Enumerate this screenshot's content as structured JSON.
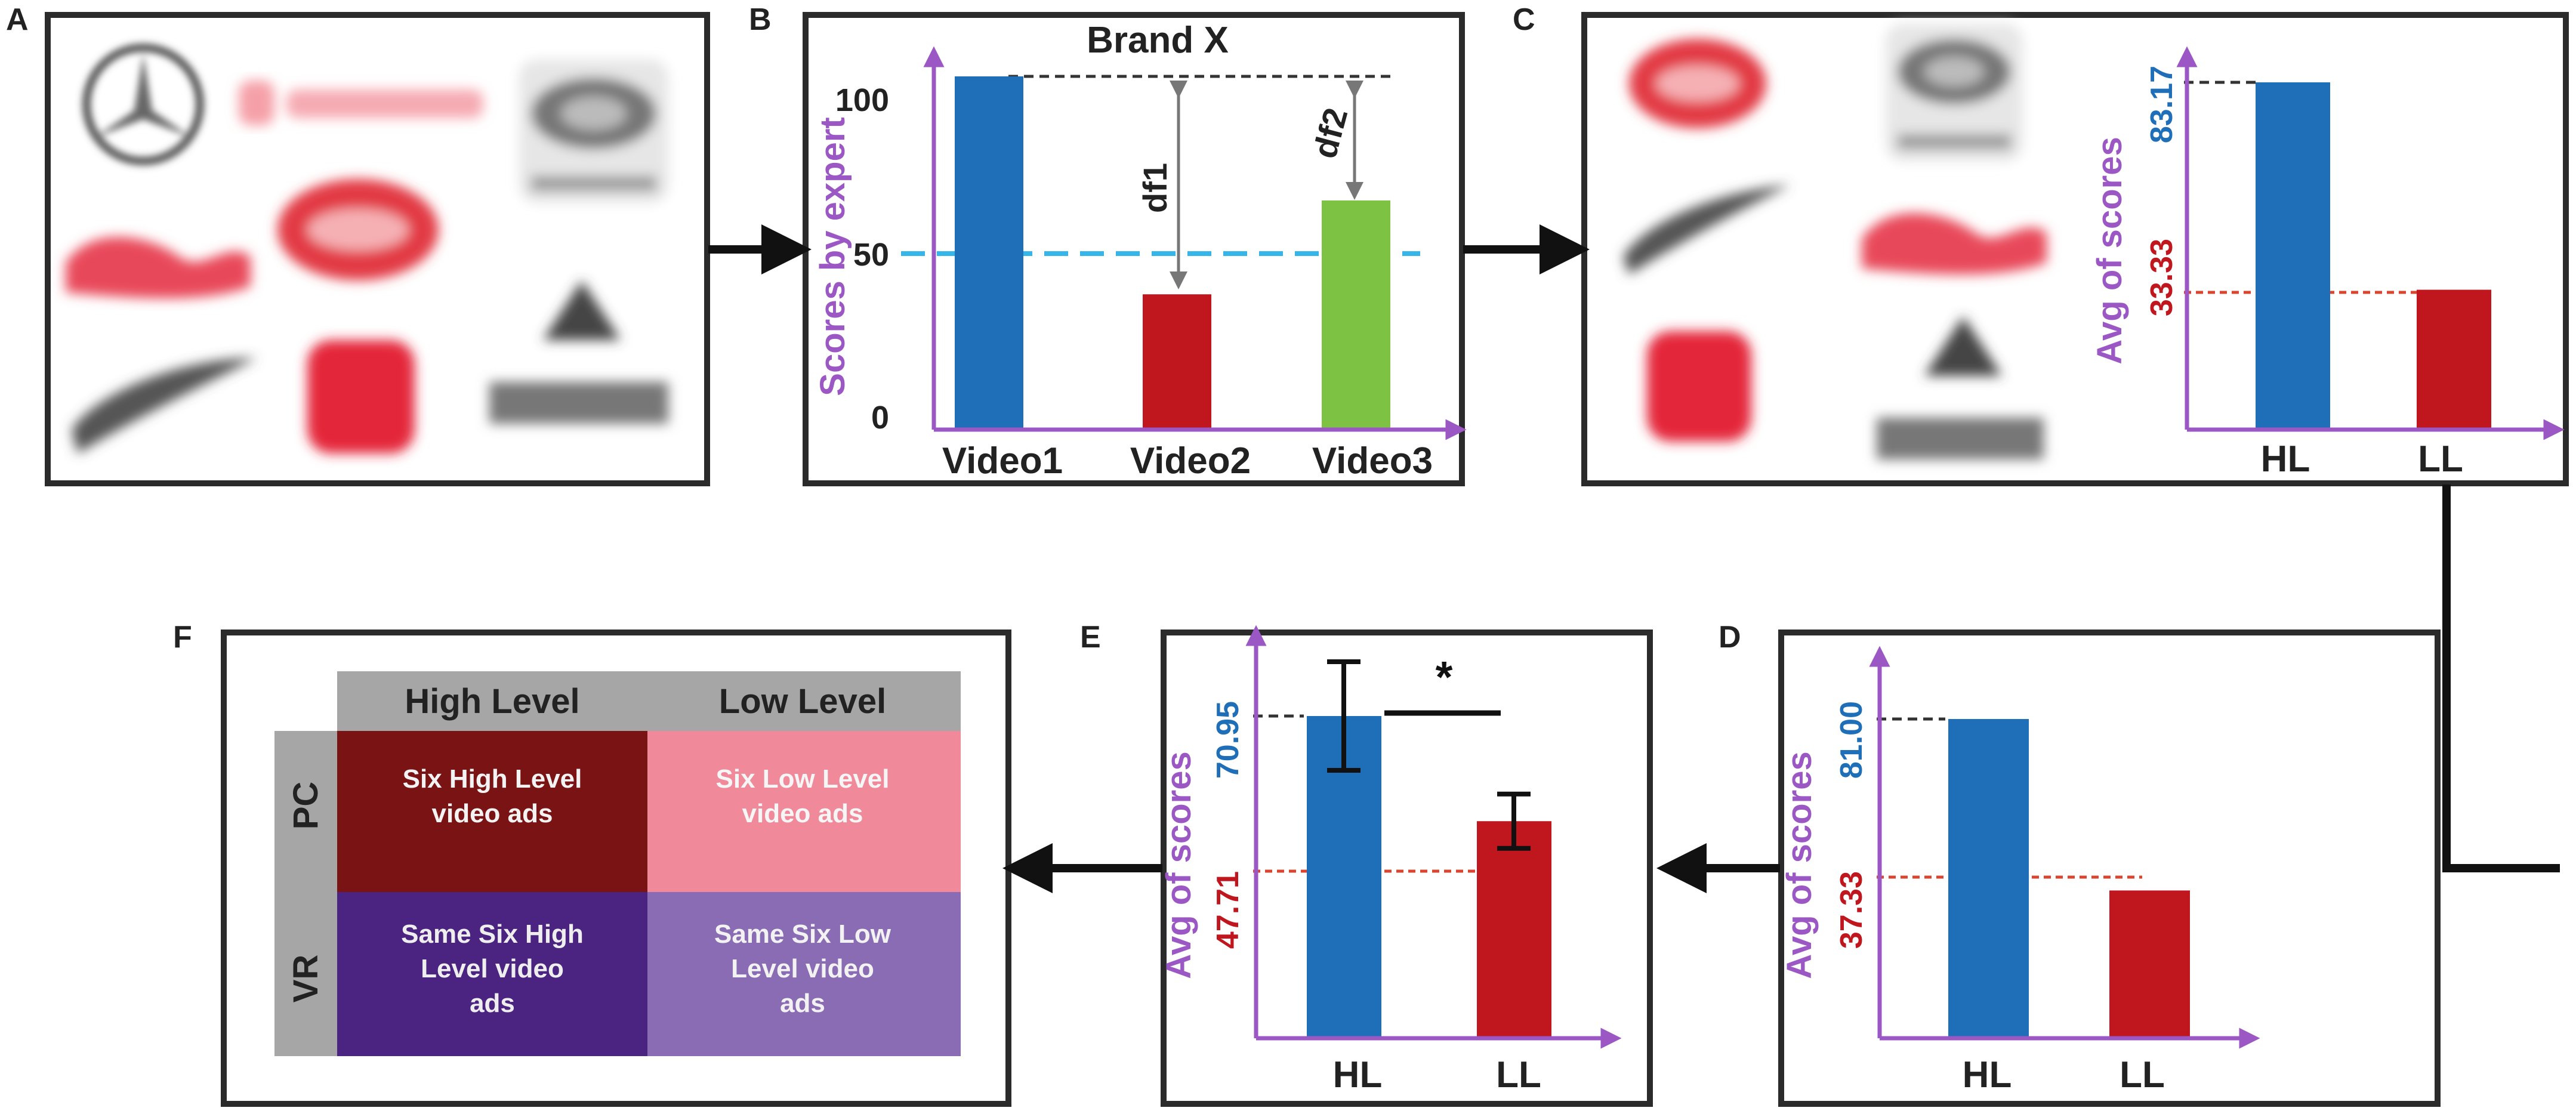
{
  "panels": {
    "A": "A",
    "B": "B",
    "C": "C",
    "D": "D",
    "E": "E",
    "F": "F"
  },
  "panel_b": {
    "title": "Brand X",
    "ylabel": "Scores by expert",
    "ticks": [
      "100",
      "50",
      "0"
    ],
    "categories": [
      "Video1",
      "Video2",
      "Video3"
    ],
    "df1": "df1",
    "df2": "df2",
    "colors": [
      "#1f6fb8",
      "#c0161e",
      "#7dc242"
    ]
  },
  "panel_c": {
    "ylabel": "Avg of scores",
    "hl_value_label": "83.17",
    "ll_value_label": "33.33",
    "categories": [
      "HL",
      "LL"
    ]
  },
  "panel_d": {
    "ylabel": "Avg of scores",
    "hl_value_label": "81.00",
    "ll_value_label": "37.33",
    "categories": [
      "HL",
      "LL"
    ]
  },
  "panel_e": {
    "ylabel": "Avg of scores",
    "hl_value_label": "70.95",
    "ll_value_label": "47.71",
    "categories": [
      "HL",
      "LL"
    ],
    "significance": "*"
  },
  "panel_f": {
    "col_headers": [
      "High Level",
      "Low Level"
    ],
    "row_headers": [
      "PC",
      "VR"
    ],
    "cells": [
      [
        "Six High Level video ads",
        "Six Low Level video ads"
      ],
      [
        "Same Six High Level video ads",
        "Same Six Low Level video ads"
      ]
    ],
    "cell_colors": [
      [
        "#7a1414",
        "#f08a9a"
      ],
      [
        "#4a2480",
        "#8a6cb4"
      ]
    ],
    "header_color": "#a6a6a6"
  },
  "chart_data": [
    {
      "type": "bar",
      "title": "Brand X",
      "ylabel": "Scores by expert",
      "categories": [
        "Video1",
        "Video2",
        "Video3"
      ],
      "values": [
        105,
        40,
        68
      ],
      "ylim": [
        0,
        110
      ],
      "annotations": [
        "df1",
        "df2"
      ],
      "reference_line": 50
    },
    {
      "type": "bar",
      "ylabel": "Avg of scores",
      "categories": [
        "HL",
        "LL"
      ],
      "values": [
        83.17,
        33.33
      ]
    },
    {
      "type": "bar",
      "ylabel": "Avg of scores",
      "categories": [
        "HL",
        "LL"
      ],
      "values": [
        81.0,
        37.33
      ]
    },
    {
      "type": "bar",
      "ylabel": "Avg of scores",
      "categories": [
        "HL",
        "LL"
      ],
      "values": [
        70.95,
        47.71
      ],
      "error_bars": [
        12,
        6
      ],
      "significance": "*"
    }
  ]
}
